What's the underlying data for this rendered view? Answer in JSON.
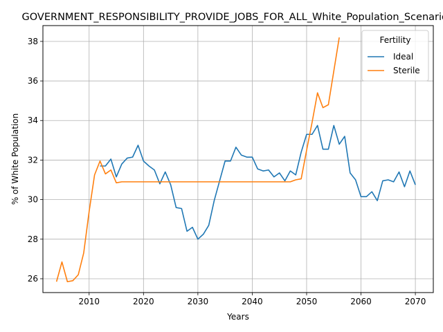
{
  "chart_data": {
    "type": "line",
    "title": "GOVERNMENT_RESPONSIBILITY_PROVIDE_JOBS_FOR_ALL_White_Population_Scenarios",
    "xlabel": "Years",
    "ylabel": "% of White Population",
    "xlim": [
      2001.5,
      2073.3
    ],
    "ylim": [
      25.3,
      38.8
    ],
    "xticks": [
      2010,
      2020,
      2030,
      2040,
      2050,
      2060,
      2070
    ],
    "yticks": [
      26,
      28,
      30,
      32,
      34,
      36,
      38
    ],
    "grid": true,
    "legend": {
      "title": "Fertility",
      "placement": "top-right"
    },
    "series": [
      {
        "name": "Ideal",
        "color": "#1f77b4",
        "x": [
          2012,
          2013,
          2014,
          2015,
          2016,
          2017,
          2018,
          2019,
          2020,
          2021,
          2022,
          2023,
          2024,
          2025,
          2026,
          2027,
          2028,
          2029,
          2030,
          2031,
          2032,
          2033,
          2034,
          2035,
          2036,
          2037,
          2038,
          2039,
          2040,
          2041,
          2042,
          2043,
          2044,
          2045,
          2046,
          2047,
          2048,
          2049,
          2050,
          2051,
          2052,
          2053,
          2054,
          2055,
          2056,
          2057,
          2058,
          2059,
          2060,
          2061,
          2062,
          2063,
          2064,
          2065,
          2066,
          2067,
          2068,
          2069,
          2070
        ],
        "values": [
          31.7,
          31.7,
          32.05,
          31.15,
          31.8,
          32.1,
          32.15,
          32.75,
          31.95,
          31.7,
          31.5,
          30.8,
          31.4,
          30.75,
          29.6,
          29.55,
          28.4,
          28.6,
          28.0,
          28.25,
          28.7,
          29.95,
          30.95,
          31.95,
          31.95,
          32.65,
          32.25,
          32.15,
          32.15,
          31.55,
          31.45,
          31.5,
          31.15,
          31.35,
          30.95,
          31.45,
          31.25,
          32.4,
          33.3,
          33.3,
          33.75,
          32.55,
          32.55,
          33.75,
          32.8,
          33.2,
          31.35,
          31.0,
          30.15,
          30.15,
          30.4,
          29.95,
          30.95,
          31.0,
          30.9,
          31.4,
          30.65,
          31.45,
          30.75
        ]
      },
      {
        "name": "Sterile",
        "color": "#ff7f0e",
        "x": [
          2004,
          2005,
          2006,
          2007,
          2008,
          2009,
          2010,
          2011,
          2012,
          2013,
          2014,
          2015,
          2016,
          2017,
          2018,
          2019,
          2020,
          2021,
          2022,
          2023,
          2024,
          2025,
          2026,
          2027,
          2028,
          2029,
          2030,
          2031,
          2032,
          2033,
          2034,
          2035,
          2036,
          2037,
          2038,
          2039,
          2040,
          2041,
          2042,
          2043,
          2044,
          2045,
          2046,
          2047,
          2048,
          2049,
          2050,
          2051,
          2052,
          2053,
          2054,
          2055,
          2056
        ],
        "values": [
          25.85,
          26.85,
          25.85,
          25.9,
          26.2,
          27.3,
          29.4,
          31.25,
          31.95,
          31.3,
          31.5,
          30.85,
          30.9,
          30.9,
          30.9,
          30.9,
          30.9,
          30.9,
          30.9,
          30.9,
          30.9,
          30.9,
          30.9,
          30.9,
          30.9,
          30.9,
          30.9,
          30.9,
          30.9,
          30.9,
          30.9,
          30.9,
          30.9,
          30.9,
          30.9,
          30.9,
          30.9,
          30.9,
          30.9,
          30.9,
          30.9,
          30.9,
          30.9,
          30.9,
          31.0,
          31.05,
          32.5,
          33.9,
          35.4,
          34.65,
          34.8,
          36.5,
          38.2
        ]
      }
    ]
  }
}
